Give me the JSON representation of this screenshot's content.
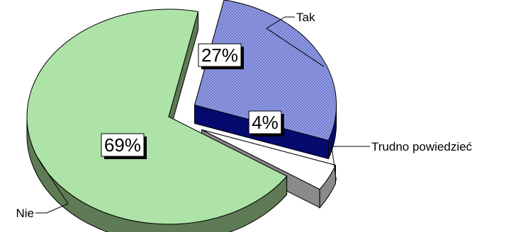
{
  "chart_data": {
    "type": "pie",
    "style": "3d-exploded",
    "slices": [
      {
        "label": "Tak",
        "value": 27,
        "value_label": "27%",
        "color": "#9da6e8",
        "pattern": "crosshatch"
      },
      {
        "label": "Trudno powiedzieć",
        "value": 4,
        "value_label": "4%",
        "color": "#ffffff",
        "pattern": "none"
      },
      {
        "label": "Nie",
        "value": 69,
        "value_label": "69%",
        "color": "#aee3a7",
        "pattern": "none"
      }
    ],
    "side_colors": {
      "Tak": "#050a6e",
      "Trudno powiedzieć": "#8a8a8a",
      "Nie": "#5e7b55"
    }
  }
}
